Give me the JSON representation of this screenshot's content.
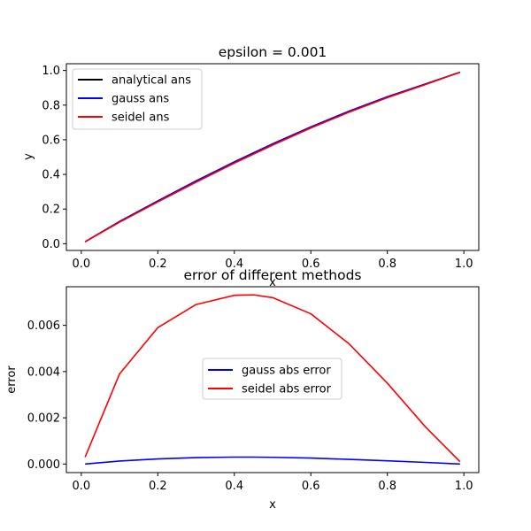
{
  "chart_data": [
    {
      "type": "line",
      "title": "epsilon = 0.001",
      "xlabel": "x",
      "ylabel": "y",
      "xlim": [
        -0.039,
        1.039
      ],
      "ylim": [
        -0.039,
        1.039
      ],
      "xticks": [
        0.0,
        0.2,
        0.4,
        0.6,
        0.8,
        1.0
      ],
      "xtick_labels": [
        "0.0",
        "0.2",
        "0.4",
        "0.6",
        "0.8",
        "1.0"
      ],
      "yticks": [
        0.0,
        0.2,
        0.4,
        0.6,
        0.8,
        1.0
      ],
      "ytick_labels": [
        "0.0",
        "0.2",
        "0.4",
        "0.6",
        "0.8",
        "1.0"
      ],
      "grid": false,
      "legend_position": "top-left",
      "x": [
        0.01,
        0.1,
        0.2,
        0.3,
        0.4,
        0.5,
        0.6,
        0.7,
        0.8,
        0.9,
        0.99
      ],
      "series": [
        {
          "name": "analytical ans",
          "color": "#000000",
          "values": [
            0.011,
            0.128,
            0.247,
            0.362,
            0.472,
            0.576,
            0.674,
            0.765,
            0.848,
            0.922,
            0.99
          ]
        },
        {
          "name": "gauss ans",
          "color": "#0000ff",
          "values": [
            0.011,
            0.128,
            0.247,
            0.362,
            0.472,
            0.576,
            0.674,
            0.765,
            0.848,
            0.922,
            0.99
          ]
        },
        {
          "name": "seidel ans",
          "color": "#ff0000",
          "values": [
            0.011,
            0.124,
            0.241,
            0.355,
            0.465,
            0.569,
            0.668,
            0.759,
            0.843,
            0.919,
            0.99
          ]
        }
      ]
    },
    {
      "type": "line",
      "title": "error of different methods",
      "xlabel": "x",
      "ylabel": "error",
      "xlim": [
        -0.039,
        1.039
      ],
      "ylim": [
        -0.00037,
        0.00767
      ],
      "xticks": [
        0.0,
        0.2,
        0.4,
        0.6,
        0.8,
        1.0
      ],
      "xtick_labels": [
        "0.0",
        "0.2",
        "0.4",
        "0.6",
        "0.8",
        "1.0"
      ],
      "yticks": [
        0.0,
        0.002,
        0.004,
        0.006
      ],
      "ytick_labels": [
        "0.000",
        "0.002",
        "0.004",
        "0.006"
      ],
      "grid": false,
      "legend_position": "center",
      "x": [
        0.01,
        0.1,
        0.2,
        0.3,
        0.4,
        0.45,
        0.5,
        0.6,
        0.7,
        0.8,
        0.9,
        0.99
      ],
      "series": [
        {
          "name": "gauss abs error",
          "color": "#0000ff",
          "values": [
            0.0,
            0.00013,
            0.00022,
            0.00028,
            0.0003,
            0.0003,
            0.00029,
            0.00026,
            0.0002,
            0.00014,
            7e-05,
            0.0
          ]
        },
        {
          "name": "seidel abs error",
          "color": "#ff0000",
          "values": [
            0.0003,
            0.0039,
            0.0059,
            0.0069,
            0.0073,
            0.00732,
            0.0072,
            0.0065,
            0.0052,
            0.0035,
            0.0016,
            0.0001
          ]
        }
      ]
    }
  ]
}
